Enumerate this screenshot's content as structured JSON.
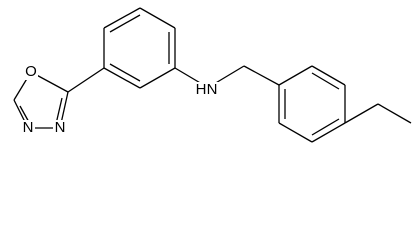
{
  "labels": [
    "O",
    "N",
    "N",
    "H",
    "N"
  ]
}
